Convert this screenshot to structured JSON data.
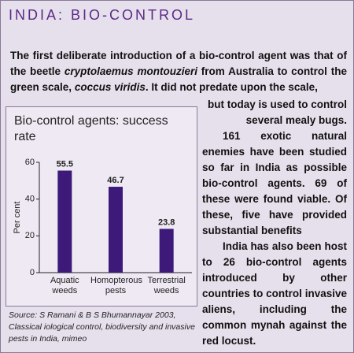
{
  "header": {
    "title": "INDIA: BIO-CONTROL"
  },
  "intro": [
    {
      "text": "The first deliberate introduction of a bio-control agent was that of the beetle ",
      "italic": false
    },
    {
      "text": "cryptolaemus montouzieri",
      "italic": true
    },
    {
      "text": " from Australia to control the green scale, ",
      "italic": false
    },
    {
      "text": "coccus viridis",
      "italic": true
    },
    {
      "text": ". It did not predate upon the scale,",
      "italic": false
    }
  ],
  "column": [
    "but today is used to control several mealy bugs.",
    "161 exotic natural enemies have been studied so far in India as possible bio-control agents. 69 of these were found viable. Of these, five have provided substantial benefits",
    "India has also been host to 26 bio-control agents introduced by other countries to control invasive aliens, including the common mynah against the red locust."
  ],
  "chart_data": {
    "type": "bar",
    "title": "Bio-control agents: success rate",
    "ylabel": "Per cent",
    "categories": [
      "Aquatic weeds",
      "Homopterous pests",
      "Terrestrial weeds"
    ],
    "values": [
      55.5,
      46.7,
      23.8
    ],
    "color": "#3d1a7a",
    "ylim": [
      0,
      60
    ],
    "yticks": [
      0,
      20,
      40,
      60
    ]
  },
  "source": "Source: S Ramani & B S Bhumannayar 2003, Classical iological control, biodiversity and invasive pests in India, mimeo"
}
